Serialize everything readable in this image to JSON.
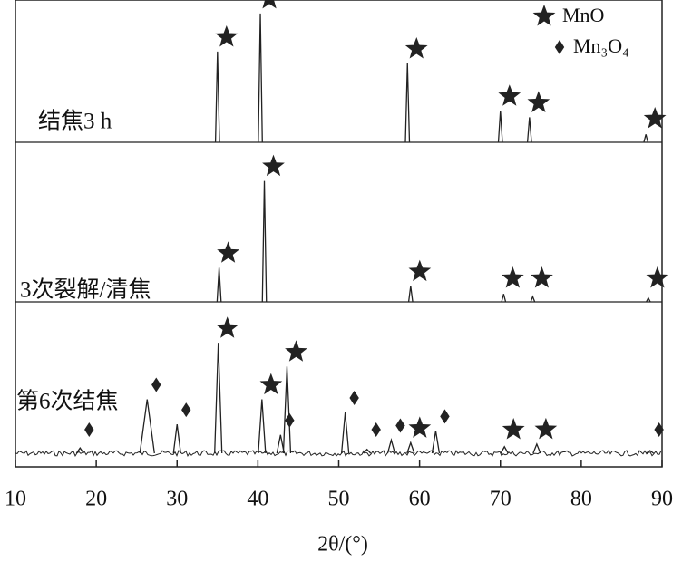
{
  "chart_data": {
    "type": "xrd",
    "xlabel": "2θ/(°)",
    "xlim": [
      10,
      90
    ],
    "xticks": [
      10,
      20,
      30,
      40,
      50,
      60,
      70,
      80,
      90
    ],
    "legend": [
      "MnO",
      "Mn₃O₄"
    ],
    "color": "#222222",
    "series": [
      {
        "name": "结焦3 h",
        "peaks": [
          {
            "x": 35.0,
            "intensity": 69,
            "phase": "MnO"
          },
          {
            "x": 40.3,
            "intensity": 98,
            "phase": "MnO"
          },
          {
            "x": 58.5,
            "intensity": 60,
            "phase": "MnO"
          },
          {
            "x": 70.0,
            "intensity": 24,
            "phase": "MnO"
          },
          {
            "x": 73.6,
            "intensity": 19,
            "phase": "MnO"
          },
          {
            "x": 88.0,
            "intensity": 6,
            "phase": "MnO"
          }
        ]
      },
      {
        "name": "3次裂解/清焦",
        "peaks": [
          {
            "x": 35.2,
            "intensity": 26,
            "phase": "MnO"
          },
          {
            "x": 40.8,
            "intensity": 92,
            "phase": "MnO"
          },
          {
            "x": 58.9,
            "intensity": 12,
            "phase": "MnO"
          },
          {
            "x": 70.4,
            "intensity": 6,
            "phase": "MnO"
          },
          {
            "x": 74.0,
            "intensity": 4,
            "phase": "MnO"
          },
          {
            "x": 88.3,
            "intensity": 3,
            "phase": "MnO"
          }
        ]
      },
      {
        "name": "第6次结焦",
        "peaks": [
          {
            "x": 18.0,
            "intensity": 4,
            "phase": "Mn₃O₄"
          },
          {
            "x": 26.3,
            "intensity": 41,
            "phase": "Mn₃O₄"
          },
          {
            "x": 30.0,
            "intensity": 22,
            "phase": "Mn₃O₄"
          },
          {
            "x": 35.1,
            "intensity": 84,
            "phase": "MnO"
          },
          {
            "x": 40.5,
            "intensity": 41,
            "phase": "MnO"
          },
          {
            "x": 42.8,
            "intensity": 14,
            "phase": "Mn₃O₄"
          },
          {
            "x": 43.6,
            "intensity": 66,
            "phase": "MnO"
          },
          {
            "x": 50.8,
            "intensity": 31,
            "phase": "Mn₃O₄"
          },
          {
            "x": 53.5,
            "intensity": 3,
            "phase": "Mn₃O₄"
          },
          {
            "x": 56.5,
            "intensity": 10,
            "phase": "Mn₃O₄"
          },
          {
            "x": 58.9,
            "intensity": 8,
            "phase": "MnO"
          },
          {
            "x": 62.0,
            "intensity": 17,
            "phase": "Mn₃O₄"
          },
          {
            "x": 70.5,
            "intensity": 5,
            "phase": "MnO"
          },
          {
            "x": 74.5,
            "intensity": 7,
            "phase": "MnO"
          },
          {
            "x": 88.5,
            "intensity": 2,
            "phase": "Mn₃O₄"
          }
        ]
      }
    ]
  }
}
